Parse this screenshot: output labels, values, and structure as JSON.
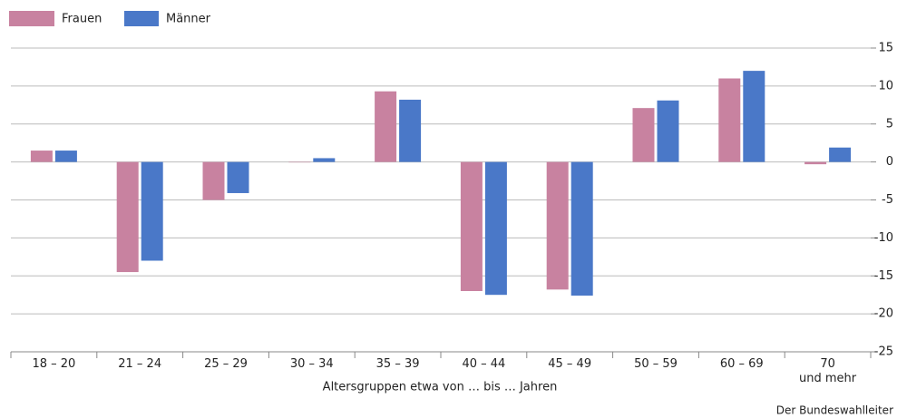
{
  "chart_data": {
    "type": "bar",
    "categories": [
      "18 – 20",
      "21 – 24",
      "25 – 29",
      "30 – 34",
      "35 – 39",
      "40 – 44",
      "45 – 49",
      "50 – 59",
      "60 – 69",
      "70\nund mehr"
    ],
    "series": [
      {
        "name": "Frauen",
        "color": "#c882a0",
        "values": [
          1.5,
          -14.5,
          -5,
          0,
          9.3,
          -17,
          -16.8,
          7.1,
          11,
          -0.3
        ]
      },
      {
        "name": "Männer",
        "color": "#4a78c8",
        "values": [
          1.5,
          -13,
          -4.1,
          0.5,
          8.2,
          -17.5,
          -17.6,
          8.1,
          12,
          1.9
        ]
      }
    ],
    "ylim": [
      -25,
      15
    ],
    "yticks": [
      15,
      10,
      5,
      0,
      -5,
      -10,
      -15,
      -20,
      -25
    ],
    "grid": true,
    "x_label": "Altersgruppen etwa von … bis … Jahren",
    "source": "Der Bundeswahlleiter",
    "legend": "top-left"
  }
}
